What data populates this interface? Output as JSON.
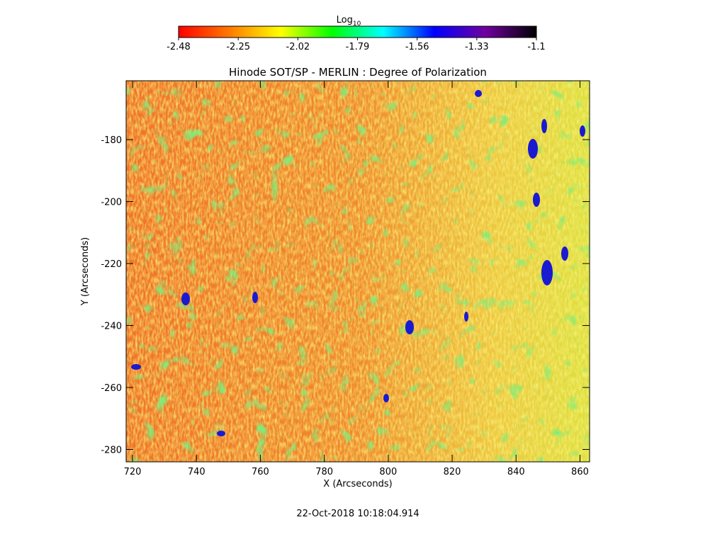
{
  "chart_data": {
    "type": "heatmap",
    "title": "Hinode SOT/SP - MERLIN : Degree of Polarization",
    "xlabel": "X (Arcseconds)",
    "ylabel": "Y (Arcseconds)",
    "xlim": [
      718,
      863
    ],
    "ylim": [
      -284,
      -161
    ],
    "xticks": [
      720,
      740,
      760,
      780,
      800,
      820,
      840,
      860
    ],
    "yticks": [
      -180,
      -200,
      -220,
      -240,
      -260,
      -280
    ],
    "colorbar": {
      "label": "Log",
      "label_subscript": "10",
      "lim": [
        -2.48,
        -1.1
      ],
      "ticks": [
        -2.48,
        -2.25,
        -2.02,
        -1.79,
        -1.56,
        -1.33,
        -1.1
      ],
      "colormap": [
        "#ff0000",
        "#ff7a00",
        "#ffff00",
        "#00ff00",
        "#00ffff",
        "#0000ff",
        "#7000a0",
        "#000000"
      ]
    },
    "timestamp": "22-Oct-2018 10:18:04.914"
  }
}
